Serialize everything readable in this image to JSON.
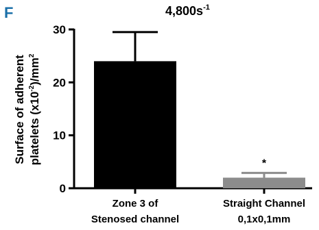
{
  "panel_label": "F",
  "chart_data": {
    "type": "bar",
    "title": "4,800s",
    "title_superscript": "-1",
    "ylabel_line1": "Surface of adherent",
    "ylabel_line2_pre": "platelets (x10",
    "ylabel_line2_sup1": "-2",
    "ylabel_line2_mid": ")/mm",
    "ylabel_line2_sup2": "2",
    "ylim": [
      0,
      30
    ],
    "yticks": [
      0,
      10,
      20,
      30
    ],
    "categories": [
      {
        "line1": "Zone 3 of",
        "line2": "Stenosed channel"
      },
      {
        "line1": "Straight Channel",
        "line2": "0,1x0,1mm"
      }
    ],
    "values": [
      24.0,
      2.0
    ],
    "errors": [
      5.5,
      0.9
    ],
    "colors": [
      "#000000",
      "#8c8c8c"
    ],
    "annotations": [
      "",
      "*"
    ],
    "grid": false
  }
}
